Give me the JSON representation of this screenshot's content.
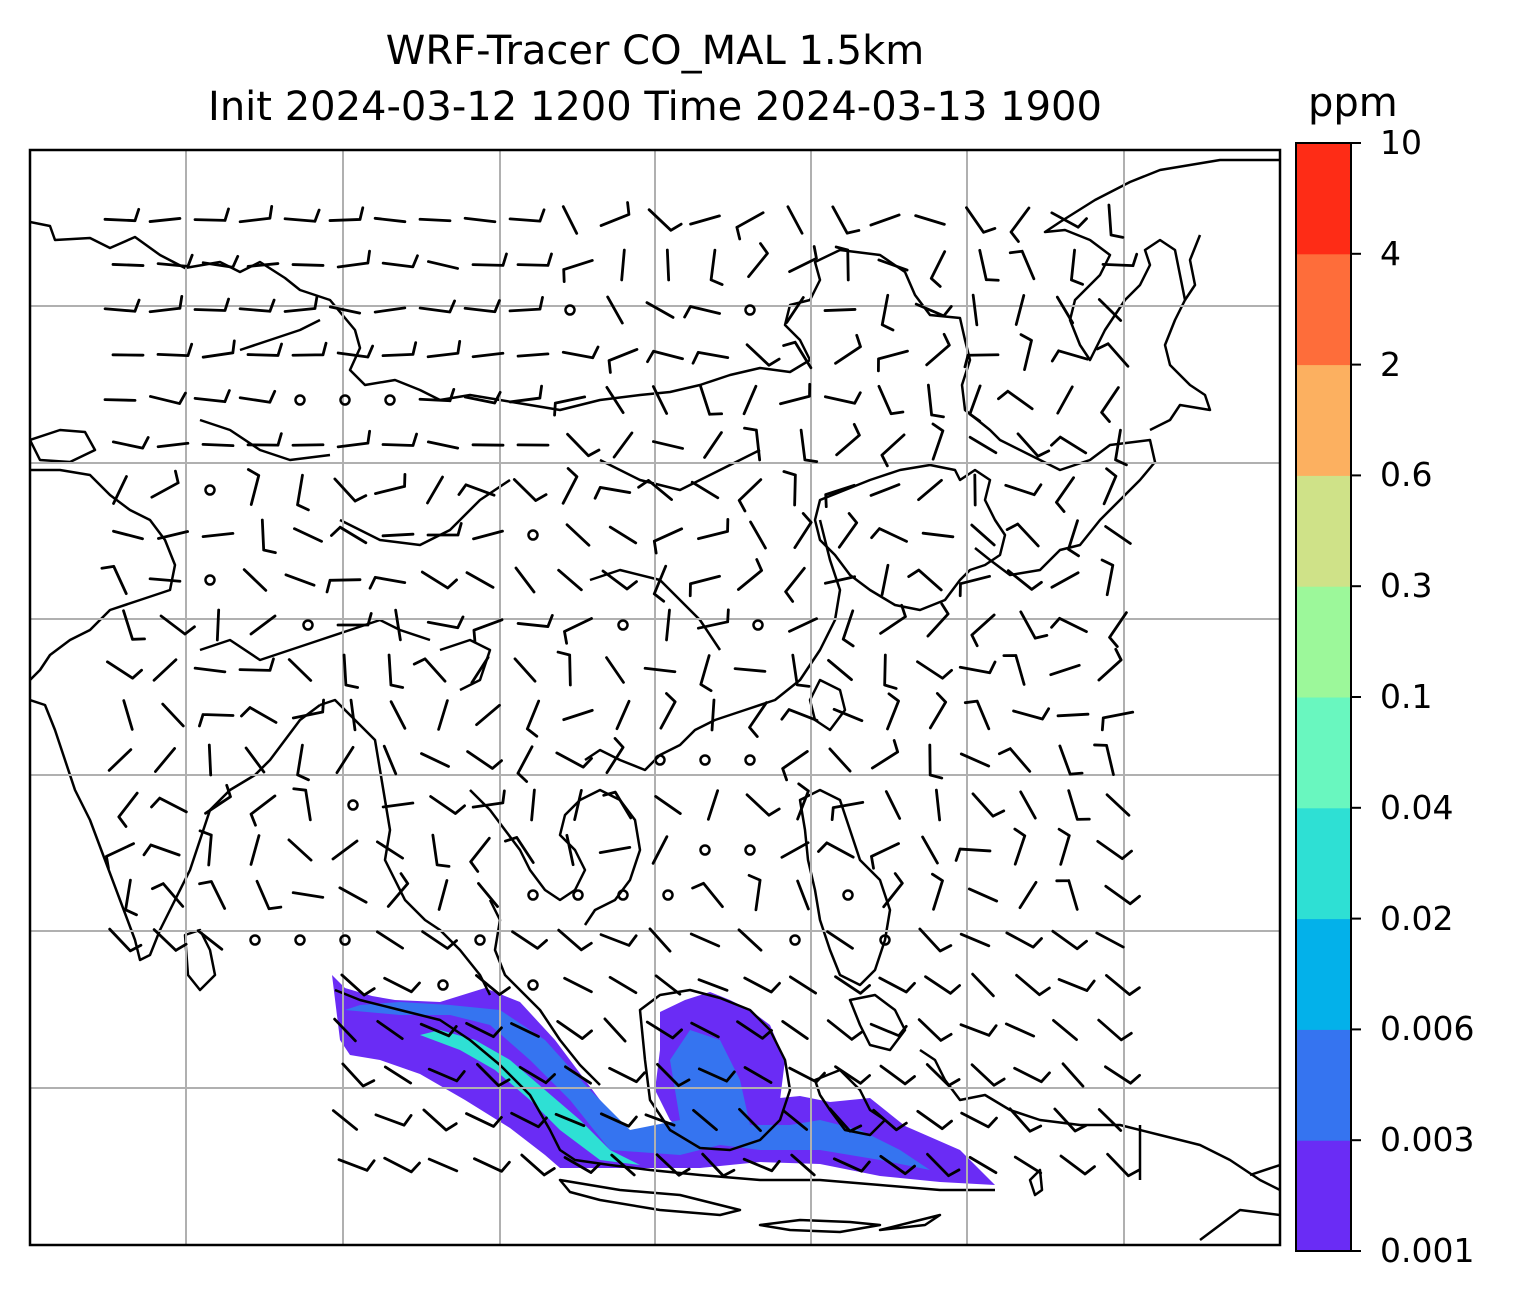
{
  "figure": {
    "title_line1": "WRF-Tracer CO_MAL 1.5km",
    "title_line2": "Init 2024-03-12 1200 Time 2024-03-13 1900"
  },
  "colorbar": {
    "unit": "ppm",
    "levels": [
      "0.001",
      "0.003",
      "0.006",
      "0.02",
      "0.04",
      "0.1",
      "0.3",
      "0.6",
      "2",
      "4",
      "10"
    ],
    "colors": [
      "#6a2cf5",
      "#3574f0",
      "#03b1ea",
      "#2ee0d4",
      "#69f7bf",
      "#9cf89a",
      "#cfe288",
      "#fcb060",
      "#fe6d3a",
      "#fe2c16"
    ]
  },
  "map": {
    "field": "CO_MAL tracer concentration",
    "overlay": "wind barbs",
    "gridlines": true,
    "plume_colors": {
      "light": "#6a2cf5",
      "medium": "#3574f0",
      "high": "#2ee0d4"
    }
  }
}
